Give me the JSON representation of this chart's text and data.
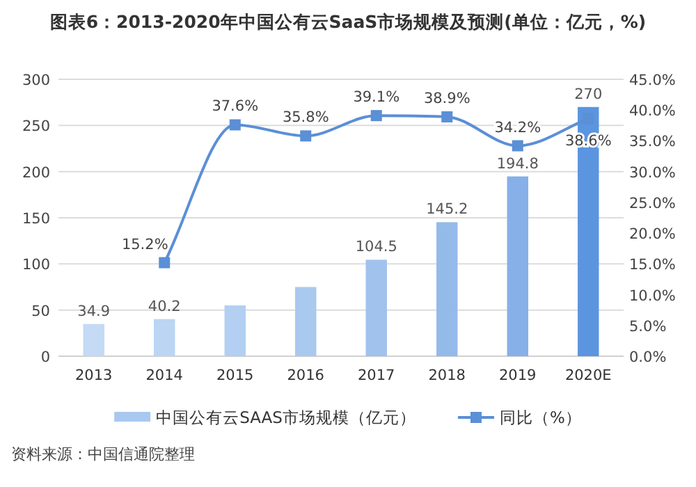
{
  "chart_data": {
    "type": "bar",
    "title": "图表6：2013-2020年中国公有云SaaS市场规模及预测(单位：亿元，%)",
    "categories": [
      "2013",
      "2014",
      "2015",
      "2016",
      "2017",
      "2018",
      "2019",
      "2020E"
    ],
    "series": [
      {
        "name": "中国公有云SAAS市场规模（亿元）",
        "color": "#a9c8ef",
        "colors": [
          "#c4daf5",
          "#bcd5f3",
          "#b3cff1",
          "#aac9ef",
          "#a0c2ed",
          "#94baea",
          "#86b0e7",
          "#5b95e0"
        ],
        "values": [
          34.9,
          40.2,
          55,
          75,
          104.5,
          145.2,
          194.8,
          270
        ],
        "value_labels": [
          "34.9",
          "40.2",
          null,
          null,
          "104.5",
          "145.2",
          "194.8",
          "270"
        ]
      },
      {
        "name": "同比（%）",
        "type": "line",
        "axis": "y2",
        "color": "#5b8fd6",
        "marker": "square",
        "values": [
          null,
          15.2,
          37.6,
          35.8,
          39.1,
          38.9,
          34.2,
          38.6
        ],
        "value_labels": [
          null,
          "15.2%",
          "37.6%",
          "35.8%",
          "39.1%",
          "38.9%",
          "34.2%",
          "38.6%"
        ]
      }
    ],
    "ylim": [
      0,
      300
    ],
    "yticks": [
      0,
      50,
      100,
      150,
      200,
      250,
      300
    ],
    "y2lim": [
      0,
      45
    ],
    "y2ticks": [
      {
        "value": 0,
        "label": "0.0%"
      },
      {
        "value": 5,
        "label": "5.0%"
      },
      {
        "value": 10,
        "label": "10.0%"
      },
      {
        "value": 15,
        "label": "15.0%"
      },
      {
        "value": 20,
        "label": "20.0%"
      },
      {
        "value": 25,
        "label": "25.0%"
      },
      {
        "value": 30,
        "label": "30.0%"
      },
      {
        "value": 35,
        "label": "35.0%"
      },
      {
        "value": 40,
        "label": "40.0%"
      },
      {
        "value": 45,
        "label": "45.0%"
      }
    ],
    "grid": "y",
    "legend": "bottom",
    "annotations": [
      "资料来源：中国信通院整理"
    ]
  }
}
